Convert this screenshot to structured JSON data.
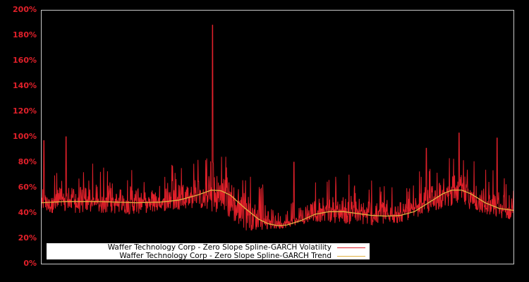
{
  "chart_data": {
    "type": "line",
    "title": "",
    "xlabel": "",
    "ylabel": "",
    "ylim": [
      0,
      200
    ],
    "y_tick_labels": [
      "0%",
      "20%",
      "40%",
      "60%",
      "80%",
      "100%",
      "120%",
      "140%",
      "160%",
      "180%",
      "200%"
    ],
    "y_ticks": [
      0,
      20,
      40,
      60,
      80,
      100,
      120,
      140,
      160,
      180,
      200
    ],
    "x_tick_labels": [],
    "grid": false,
    "legend_position": "lower-left",
    "background": "#000000",
    "axis_frame_color": "#c8c8c8",
    "tick_label_color": "#e0202a",
    "series": [
      {
        "name": "Waffer Technology Corp - Zero Slope Spline-GARCH Volatility",
        "color": "#e0202a",
        "type": "volatility",
        "baseline_floor_pct_by_position": [
          [
            0,
            40
          ],
          [
            0.2,
            39
          ],
          [
            0.33,
            44
          ],
          [
            0.4,
            35
          ],
          [
            0.43,
            26
          ],
          [
            0.5,
            27
          ],
          [
            0.58,
            33
          ],
          [
            0.7,
            30
          ],
          [
            0.75,
            31
          ],
          [
            0.88,
            47
          ],
          [
            0.94,
            38
          ],
          [
            1.0,
            34
          ]
        ],
        "notable_spikes": [
          {
            "position": 0.005,
            "value": 97
          },
          {
            "position": 0.052,
            "value": 100
          },
          {
            "position": 0.362,
            "value": 188
          },
          {
            "position": 0.535,
            "value": 80
          },
          {
            "position": 0.815,
            "value": 91
          },
          {
            "position": 0.885,
            "value": 103
          },
          {
            "position": 0.965,
            "value": 99
          }
        ],
        "typical_range_pct": [
          25,
          80
        ]
      },
      {
        "name": "Waffer Technology Corp - Zero Slope Spline-GARCH Trend",
        "color": "#e0b040",
        "type": "trend",
        "points": [
          [
            0,
            48
          ],
          [
            0.05,
            49
          ],
          [
            0.12,
            49
          ],
          [
            0.2,
            48
          ],
          [
            0.25,
            48.5
          ],
          [
            0.29,
            50
          ],
          [
            0.33,
            54
          ],
          [
            0.36,
            58
          ],
          [
            0.38,
            57.5
          ],
          [
            0.4,
            54
          ],
          [
            0.43,
            44
          ],
          [
            0.46,
            35
          ],
          [
            0.48,
            31.5
          ],
          [
            0.5,
            30
          ],
          [
            0.52,
            30.5
          ],
          [
            0.55,
            34
          ],
          [
            0.58,
            39
          ],
          [
            0.61,
            41
          ],
          [
            0.64,
            41
          ],
          [
            0.67,
            39.5
          ],
          [
            0.7,
            38
          ],
          [
            0.73,
            37.5
          ],
          [
            0.76,
            38
          ],
          [
            0.79,
            41
          ],
          [
            0.82,
            48
          ],
          [
            0.85,
            55
          ],
          [
            0.87,
            58
          ],
          [
            0.89,
            58
          ],
          [
            0.91,
            55
          ],
          [
            0.94,
            48
          ],
          [
            0.97,
            43.5
          ],
          [
            1.0,
            42
          ]
        ]
      }
    ]
  },
  "legend": {
    "items": [
      {
        "label": "Waffer Technology Corp - Zero Slope Spline-GARCH Volatility",
        "color": "#e0202a"
      },
      {
        "label": "Waffer Technology Corp - Zero Slope Spline-GARCH Trend",
        "color": "#e0b040"
      }
    ]
  }
}
